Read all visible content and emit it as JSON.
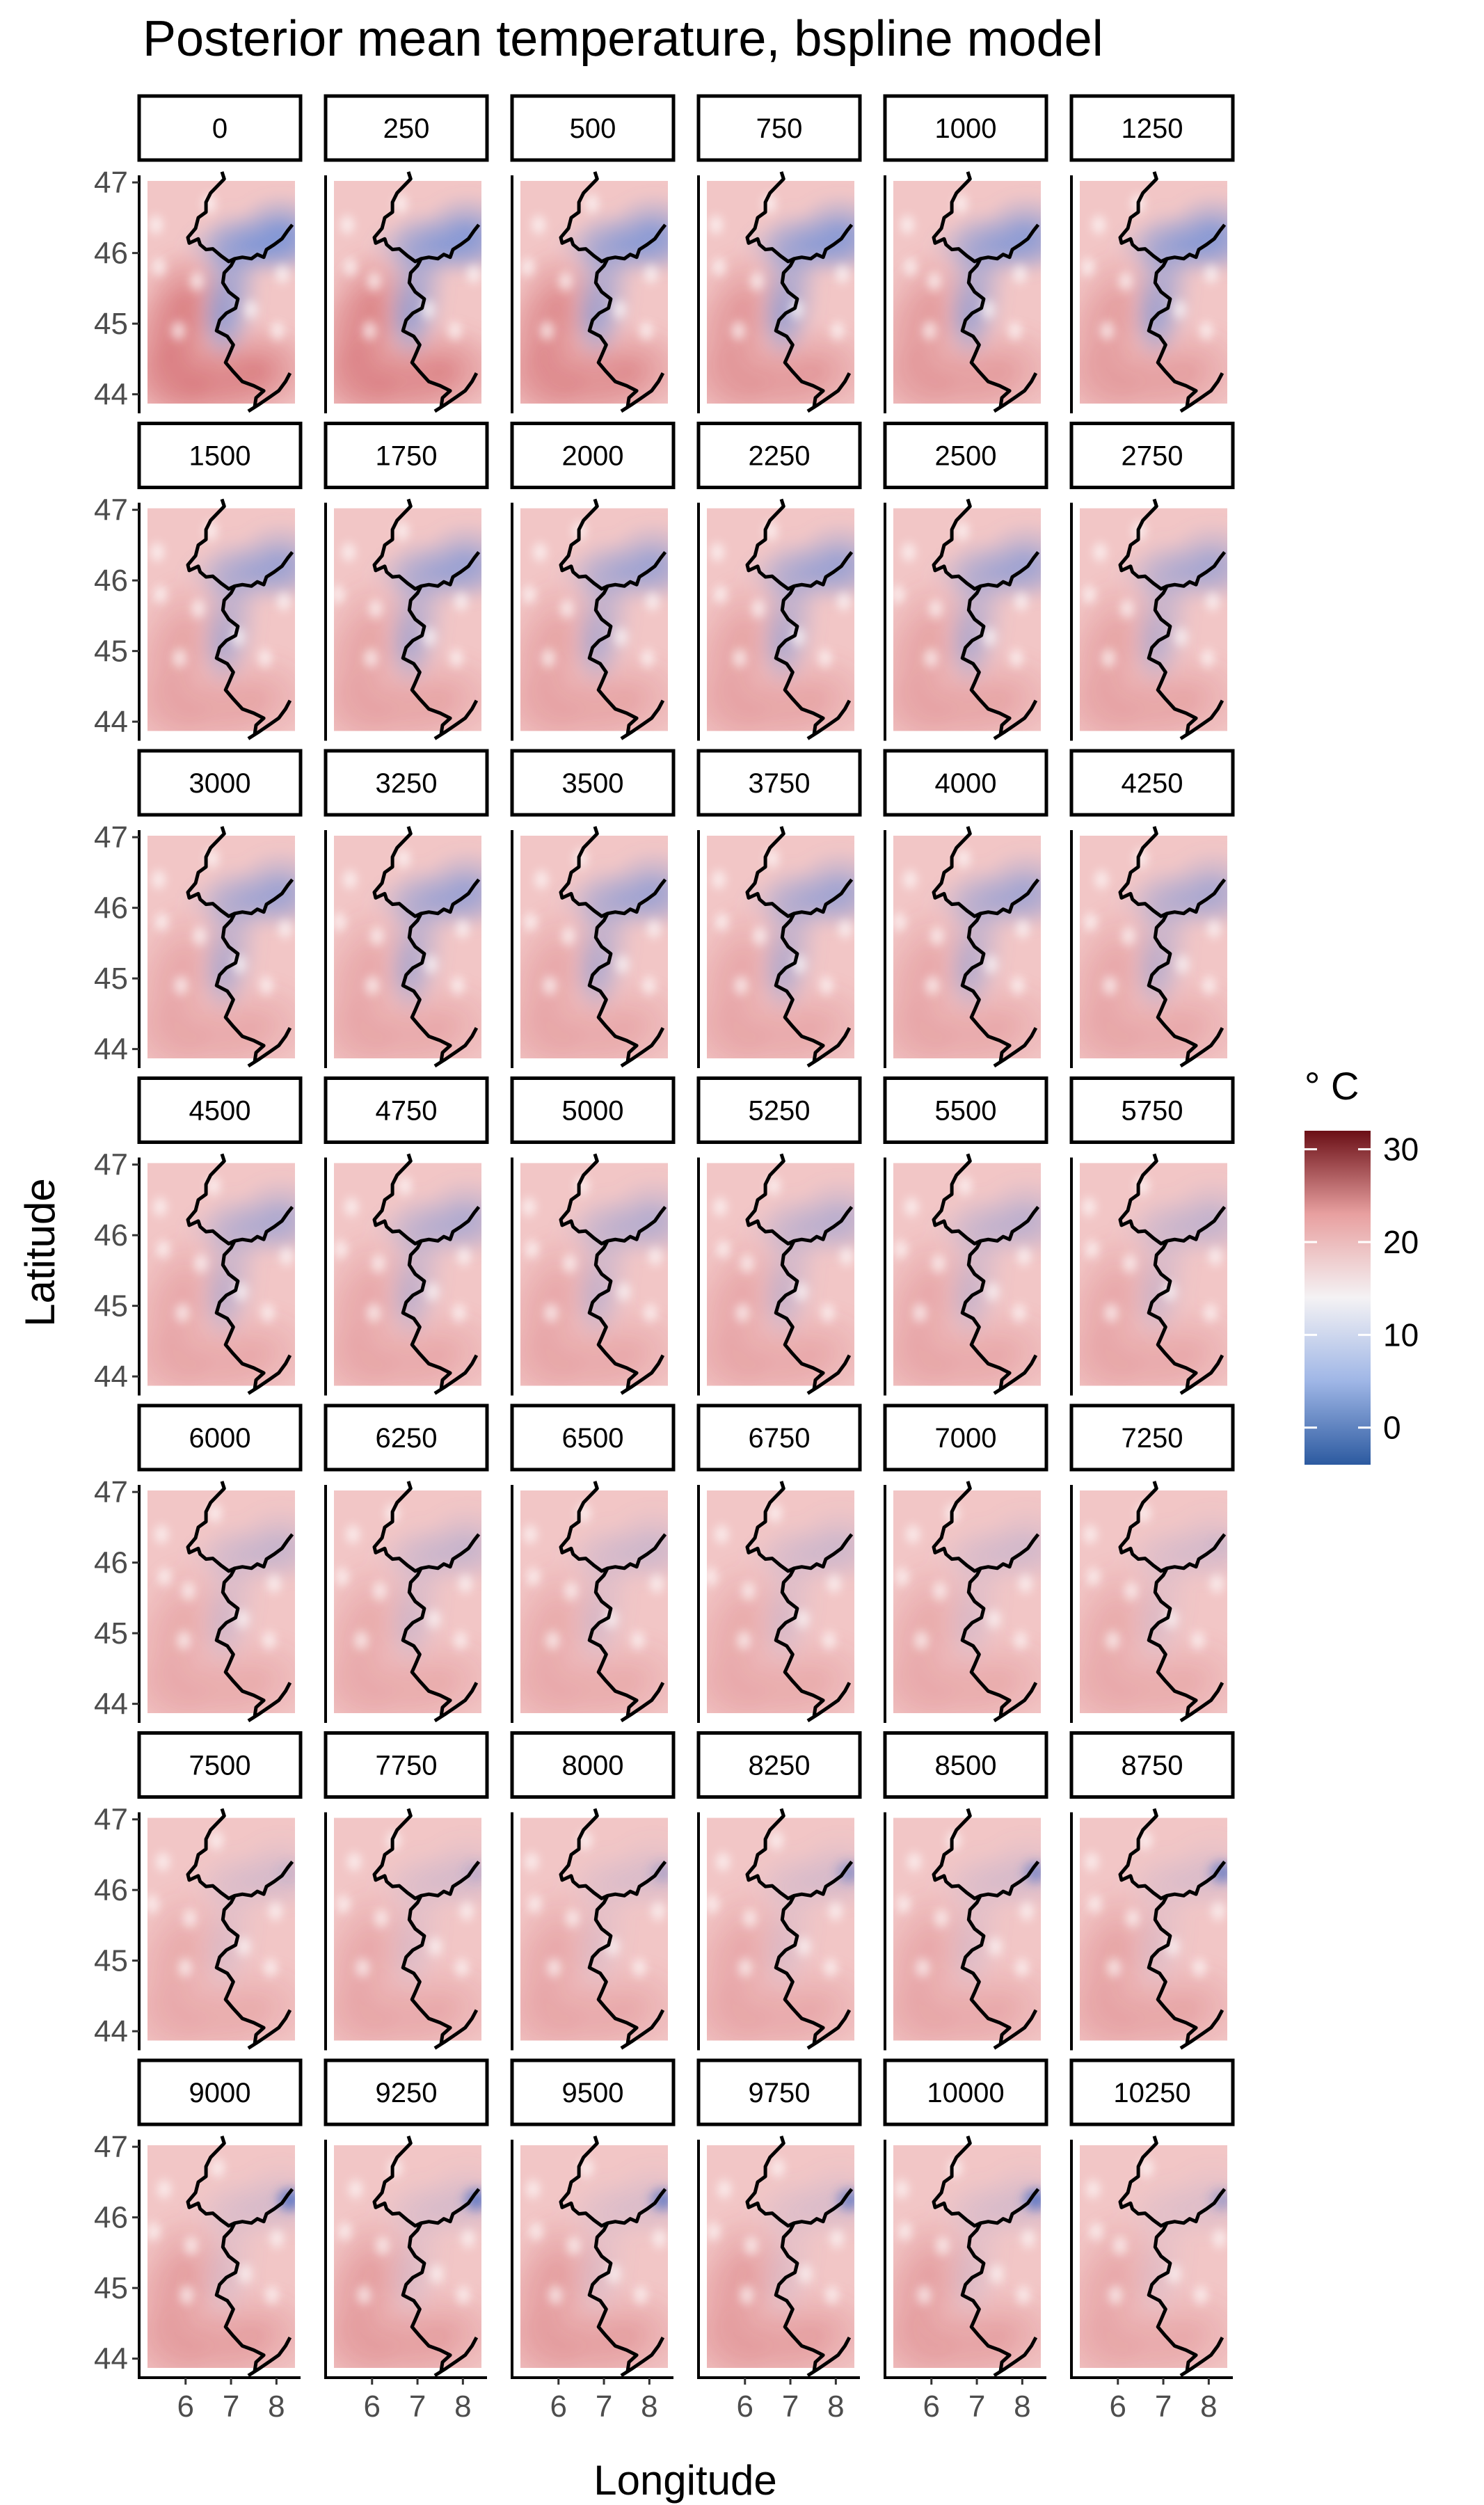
{
  "chart_data": {
    "type": "heatmap",
    "title": "Posterior mean temperature, bspline model",
    "xlabel": "Longitude",
    "ylabel": "Latitude",
    "x_ticks": [
      6,
      7,
      8
    ],
    "y_ticks": [
      44,
      45,
      46,
      47
    ],
    "xlim": [
      5.1,
      8.5
    ],
    "ylim": [
      43.75,
      47.1
    ],
    "grid": false,
    "legend": {
      "title": "° C",
      "placement": "right",
      "ticks": [
        0,
        10,
        20,
        30
      ],
      "range": [
        -4,
        32
      ],
      "colors": [
        "#2c5aa0",
        "#9fb6e6",
        "#f4f2f4",
        "#e8a0a0",
        "#6b0f16"
      ]
    },
    "panels": [
      {
        "label": "0",
        "cold": 0.75,
        "east": 0.0,
        "warm": 0.55
      },
      {
        "label": "250",
        "cold": 0.68,
        "east": 0.0,
        "warm": 0.5
      },
      {
        "label": "500",
        "cold": 0.64,
        "east": 0.0,
        "warm": 0.45
      },
      {
        "label": "750",
        "cold": 0.65,
        "east": 0.0,
        "warm": 0.35
      },
      {
        "label": "1000",
        "cold": 0.62,
        "east": 0.0,
        "warm": 0.32
      },
      {
        "label": "1250",
        "cold": 0.66,
        "east": 0.0,
        "warm": 0.3
      },
      {
        "label": "1500",
        "cold": 0.5,
        "east": 0.0,
        "warm": 0.25
      },
      {
        "label": "1750",
        "cold": 0.52,
        "east": 0.0,
        "warm": 0.25
      },
      {
        "label": "2000",
        "cold": 0.48,
        "east": 0.0,
        "warm": 0.25
      },
      {
        "label": "2250",
        "cold": 0.5,
        "east": 0.0,
        "warm": 0.25
      },
      {
        "label": "2500",
        "cold": 0.48,
        "east": 0.0,
        "warm": 0.25
      },
      {
        "label": "2750",
        "cold": 0.42,
        "east": 0.0,
        "warm": 0.25
      },
      {
        "label": "3000",
        "cold": 0.48,
        "east": 0.0,
        "warm": 0.22
      },
      {
        "label": "3250",
        "cold": 0.5,
        "east": 0.0,
        "warm": 0.22
      },
      {
        "label": "3500",
        "cold": 0.48,
        "east": 0.0,
        "warm": 0.22
      },
      {
        "label": "3750",
        "cold": 0.46,
        "east": 0.0,
        "warm": 0.22
      },
      {
        "label": "4000",
        "cold": 0.44,
        "east": 0.0,
        "warm": 0.22
      },
      {
        "label": "4250",
        "cold": 0.4,
        "east": 0.0,
        "warm": 0.22
      },
      {
        "label": "4500",
        "cold": 0.38,
        "east": 0.0,
        "warm": 0.22
      },
      {
        "label": "4750",
        "cold": 0.36,
        "east": 0.0,
        "warm": 0.22
      },
      {
        "label": "5000",
        "cold": 0.32,
        "east": 0.0,
        "warm": 0.22
      },
      {
        "label": "5250",
        "cold": 0.3,
        "east": 0.0,
        "warm": 0.22
      },
      {
        "label": "5500",
        "cold": 0.28,
        "east": 0.0,
        "warm": 0.22
      },
      {
        "label": "5750",
        "cold": 0.24,
        "east": 0.0,
        "warm": 0.22
      },
      {
        "label": "6000",
        "cold": 0.22,
        "east": 0.0,
        "warm": 0.2
      },
      {
        "label": "6250",
        "cold": 0.22,
        "east": 0.0,
        "warm": 0.2
      },
      {
        "label": "6500",
        "cold": 0.18,
        "east": 0.0,
        "warm": 0.2
      },
      {
        "label": "6750",
        "cold": 0.18,
        "east": 0.0,
        "warm": 0.2
      },
      {
        "label": "7000",
        "cold": 0.16,
        "east": 0.0,
        "warm": 0.2
      },
      {
        "label": "7250",
        "cold": 0.14,
        "east": 0.05,
        "warm": 0.2
      },
      {
        "label": "7500",
        "cold": 0.14,
        "east": 0.1,
        "warm": 0.2
      },
      {
        "label": "7750",
        "cold": 0.14,
        "east": 0.2,
        "warm": 0.22
      },
      {
        "label": "8000",
        "cold": 0.12,
        "east": 0.3,
        "warm": 0.22
      },
      {
        "label": "8250",
        "cold": 0.14,
        "east": 0.5,
        "warm": 0.22
      },
      {
        "label": "8500",
        "cold": 0.14,
        "east": 0.6,
        "warm": 0.22
      },
      {
        "label": "8750",
        "cold": 0.12,
        "east": 0.7,
        "warm": 0.25
      },
      {
        "label": "9000",
        "cold": 0.14,
        "east": 0.85,
        "warm": 0.3
      },
      {
        "label": "9250",
        "cold": 0.14,
        "east": 0.8,
        "warm": 0.3
      },
      {
        "label": "9500",
        "cold": 0.12,
        "east": 0.75,
        "warm": 0.3
      },
      {
        "label": "9750",
        "cold": 0.12,
        "east": 0.7,
        "warm": 0.3
      },
      {
        "label": "10000",
        "cold": 0.14,
        "east": 0.85,
        "warm": 0.28
      },
      {
        "label": "10250",
        "cold": 0.1,
        "east": 0.4,
        "warm": 0.22
      }
    ]
  }
}
